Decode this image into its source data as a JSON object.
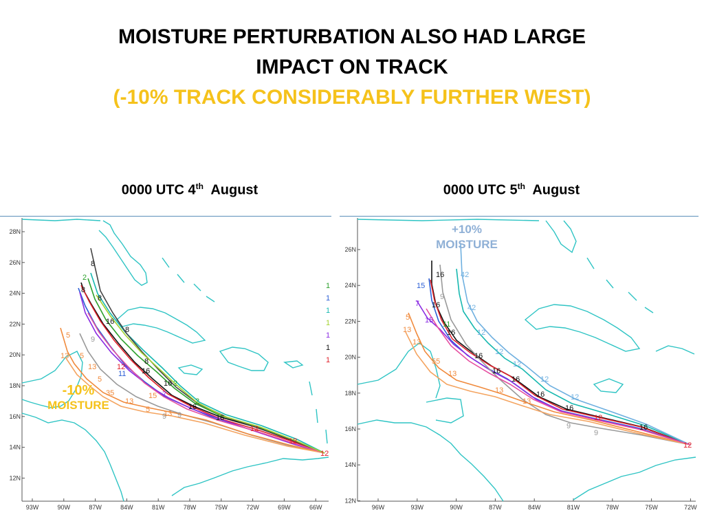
{
  "title": {
    "line1": "MOISTURE PERTURBATION ALSO HAD LARGE",
    "line2": "IMPACT ON TRACK",
    "line3": "(-10% TRACK CONSIDERABLY FURTHER WEST)"
  },
  "colors": {
    "coast": "#2ec4c4",
    "subtitle": "#f5c21b",
    "minus_annotation": "#f5c21b",
    "plus_annotation": "#8fb0d6",
    "axis": "#555555"
  },
  "panels": [
    {
      "caption_prefix": "0000 UTC 4",
      "caption_sup": "th",
      "caption_suffix": "August",
      "annotation": {
        "line1": "-10%",
        "line2": "MOISTURE",
        "color": "#f5c21b"
      },
      "y_ticks": [
        "28N",
        "26N",
        "24N",
        "22N",
        "20N",
        "18N",
        "16N",
        "14N",
        "12N"
      ],
      "x_ticks": [
        "93W",
        "90W",
        "87W",
        "84W",
        "81W",
        "78W",
        "75W",
        "72W",
        "69W",
        "66W"
      ]
    },
    {
      "caption_prefix": "0000 UTC 5",
      "caption_sup": "th",
      "caption_suffix": "August",
      "annotation": {
        "line1": "+10%",
        "line2": "MOISTURE",
        "color": "#8fb0d6"
      },
      "y_ticks": [
        "26N",
        "24N",
        "22N",
        "20N",
        "18N",
        "16N",
        "14N",
        "12N"
      ],
      "x_ticks": [
        "96W",
        "93W",
        "90W",
        "87W",
        "84W",
        "81W",
        "78W",
        "75W",
        "72W"
      ]
    }
  ]
}
